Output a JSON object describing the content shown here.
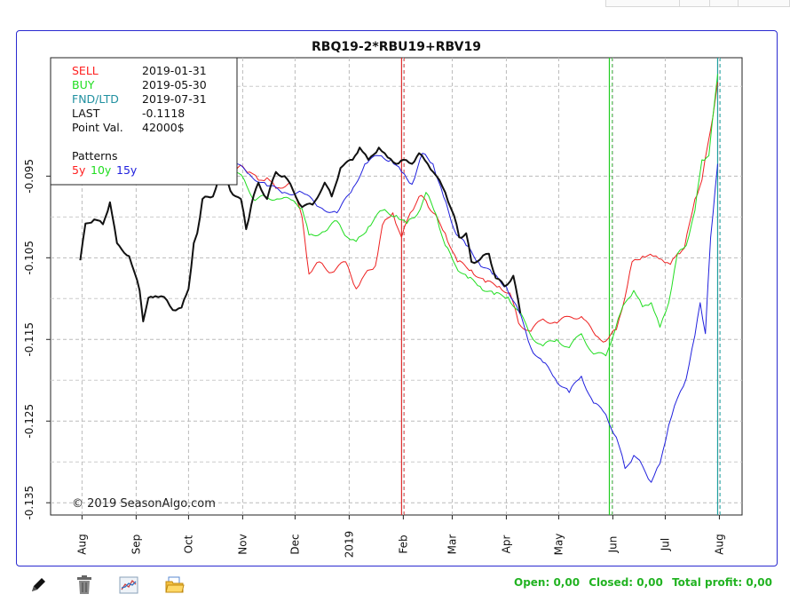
{
  "chart_data": {
    "type": "line",
    "title": "RBQ19-2*RBU19+RBV19",
    "watermark": "© 2019 SeasonAlgo.com",
    "x_tick_labels": [
      "Aug",
      "Sep",
      "Oct",
      "Nov",
      "Dec",
      "2019",
      "Feb",
      "Mar",
      "Apr",
      "May",
      "Jun",
      "Jul",
      "Aug"
    ],
    "x_ticks": [
      "2018-08-01",
      "2018-09-01",
      "2018-10-01",
      "2018-11-01",
      "2018-12-01",
      "2019-01-01",
      "2019-02-01",
      "2019-03-01",
      "2019-04-01",
      "2019-05-01",
      "2019-06-01",
      "2019-07-01",
      "2019-08-01"
    ],
    "x_range": [
      "2018-07-14",
      "2019-08-14"
    ],
    "y_ticks": [
      -0.095,
      -0.105,
      -0.115,
      -0.125,
      -0.135
    ],
    "y_tick_labels": [
      "-0.095",
      "-0.105",
      "-0.115",
      "-0.125",
      "-0.135"
    ],
    "ylim": [
      -0.1365,
      -0.0805
    ],
    "grid": true,
    "vertical_markers": [
      {
        "date": "2019-01-31",
        "color": "#e03030",
        "style": "solid"
      },
      {
        "date": "2019-05-30",
        "color": "#20cc20",
        "style": "solid"
      },
      {
        "date": "2019-07-31",
        "color": "#20a0a0",
        "style": "solid"
      }
    ],
    "info_box": {
      "rows": [
        {
          "label": "SELL",
          "value": "2019-01-31",
          "color": "#ff2020"
        },
        {
          "label": "BUY",
          "value": "2019-05-30",
          "color": "#20dd20"
        },
        {
          "label": "FND/LTD",
          "value": "2019-07-31",
          "color": "#2090a0"
        },
        {
          "label": "LAST",
          "value": "-0.1118",
          "color": "#111111"
        },
        {
          "label": "Point Val.",
          "value": "42000$",
          "color": "#111111"
        }
      ],
      "patterns_title": "Patterns",
      "patterns": [
        {
          "label": "5y",
          "color": "#ff2020"
        },
        {
          "label": "10y",
          "color": "#20dd20"
        },
        {
          "label": "15y",
          "color": "#2020dd"
        }
      ]
    },
    "series": [
      {
        "color": "#111111",
        "width": 2,
        "points": [
          [
            "2018-07-31",
            -0.1053
          ],
          [
            "2018-08-03",
            -0.1008
          ],
          [
            "2018-08-08",
            -0.1003
          ],
          [
            "2018-08-13",
            -0.1009
          ],
          [
            "2018-08-17",
            -0.0982
          ],
          [
            "2018-08-21",
            -0.1032
          ],
          [
            "2018-08-28",
            -0.1048
          ],
          [
            "2018-09-03",
            -0.109
          ],
          [
            "2018-09-05",
            -0.1128
          ],
          [
            "2018-09-08",
            -0.1099
          ],
          [
            "2018-09-12",
            -0.1097
          ],
          [
            "2018-09-17",
            -0.1098
          ],
          [
            "2018-09-22",
            -0.1114
          ],
          [
            "2018-09-27",
            -0.1111
          ],
          [
            "2018-10-01",
            -0.1088
          ],
          [
            "2018-10-04",
            -0.1032
          ],
          [
            "2018-10-06",
            -0.102
          ],
          [
            "2018-10-09",
            -0.0978
          ],
          [
            "2018-10-15",
            -0.0975
          ],
          [
            "2018-10-20",
            -0.0938
          ],
          [
            "2018-10-25",
            -0.0968
          ],
          [
            "2018-10-31",
            -0.0978
          ],
          [
            "2018-11-03",
            -0.1015
          ],
          [
            "2018-11-06",
            -0.0985
          ],
          [
            "2018-11-10",
            -0.0958
          ],
          [
            "2018-11-15",
            -0.0978
          ],
          [
            "2018-11-20",
            -0.0945
          ],
          [
            "2018-11-25",
            -0.095
          ],
          [
            "2018-11-30",
            -0.0968
          ],
          [
            "2018-12-05",
            -0.0988
          ],
          [
            "2018-12-11",
            -0.0985
          ],
          [
            "2018-12-18",
            -0.0958
          ],
          [
            "2018-12-22",
            -0.0975
          ],
          [
            "2018-12-27",
            -0.094
          ],
          [
            "2019-01-03",
            -0.093
          ],
          [
            "2019-01-07",
            -0.0915
          ],
          [
            "2019-01-12",
            -0.093
          ],
          [
            "2019-01-18",
            -0.0915
          ],
          [
            "2019-01-23",
            -0.0927
          ],
          [
            "2019-01-28",
            -0.0935
          ],
          [
            "2019-02-01",
            -0.093
          ],
          [
            "2019-02-06",
            -0.0935
          ],
          [
            "2019-02-10",
            -0.0922
          ],
          [
            "2019-02-15",
            -0.0935
          ],
          [
            "2019-02-20",
            -0.095
          ],
          [
            "2019-02-25",
            -0.097
          ],
          [
            "2019-03-02",
            -0.0998
          ],
          [
            "2019-03-05",
            -0.1025
          ],
          [
            "2019-03-09",
            -0.102
          ],
          [
            "2019-03-12",
            -0.1055
          ],
          [
            "2019-03-17",
            -0.1052
          ],
          [
            "2019-03-22",
            -0.1045
          ],
          [
            "2019-03-26",
            -0.1075
          ],
          [
            "2019-03-31",
            -0.1085
          ],
          [
            "2019-04-05",
            -0.1072
          ],
          [
            "2019-04-09",
            -0.1118
          ]
        ]
      },
      {
        "color": "#ee2020",
        "width": 1,
        "points": [
          [
            "2018-10-28",
            -0.0943
          ],
          [
            "2018-11-01",
            -0.0938
          ],
          [
            "2018-11-05",
            -0.0945
          ],
          [
            "2018-11-10",
            -0.0955
          ],
          [
            "2018-11-15",
            -0.0952
          ],
          [
            "2018-11-20",
            -0.0965
          ],
          [
            "2018-11-28",
            -0.0958
          ],
          [
            "2018-12-05",
            -0.1
          ],
          [
            "2018-12-09",
            -0.107
          ],
          [
            "2018-12-15",
            -0.1055
          ],
          [
            "2018-12-22",
            -0.1068
          ],
          [
            "2018-12-30",
            -0.1055
          ],
          [
            "2019-01-05",
            -0.1088
          ],
          [
            "2019-01-10",
            -0.107
          ],
          [
            "2019-01-16",
            -0.106
          ],
          [
            "2019-01-20",
            -0.101
          ],
          [
            "2019-01-26",
            -0.0995
          ],
          [
            "2019-01-31",
            -0.1025
          ],
          [
            "2019-02-05",
            -0.0995
          ],
          [
            "2019-02-10",
            -0.0975
          ],
          [
            "2019-02-14",
            -0.098
          ],
          [
            "2019-02-18",
            -0.0995
          ],
          [
            "2019-02-25",
            -0.102
          ],
          [
            "2019-03-04",
            -0.1055
          ],
          [
            "2019-03-12",
            -0.1065
          ],
          [
            "2019-03-20",
            -0.108
          ],
          [
            "2019-03-28",
            -0.1085
          ],
          [
            "2019-04-03",
            -0.1093
          ],
          [
            "2019-04-08",
            -0.113
          ],
          [
            "2019-04-15",
            -0.114
          ],
          [
            "2019-04-22",
            -0.1125
          ],
          [
            "2019-04-30",
            -0.113
          ],
          [
            "2019-05-07",
            -0.1122
          ],
          [
            "2019-05-14",
            -0.1122
          ],
          [
            "2019-05-22",
            -0.1145
          ],
          [
            "2019-05-28",
            -0.1152
          ],
          [
            "2019-06-03",
            -0.1138
          ],
          [
            "2019-06-08",
            -0.1098
          ],
          [
            "2019-06-12",
            -0.1055
          ],
          [
            "2019-06-18",
            -0.1048
          ],
          [
            "2019-06-24",
            -0.1048
          ],
          [
            "2019-06-29",
            -0.1052
          ],
          [
            "2019-07-04",
            -0.1058
          ],
          [
            "2019-07-08",
            -0.1045
          ],
          [
            "2019-07-12",
            -0.1038
          ],
          [
            "2019-07-18",
            -0.0978
          ],
          [
            "2019-07-22",
            -0.0955
          ],
          [
            "2019-07-27",
            -0.0893
          ],
          [
            "2019-07-31",
            -0.0835
          ]
        ]
      },
      {
        "color": "#20dd20",
        "width": 1,
        "points": [
          [
            "2018-10-28",
            -0.0945
          ],
          [
            "2018-11-02",
            -0.0955
          ],
          [
            "2018-11-08",
            -0.098
          ],
          [
            "2018-11-14",
            -0.0975
          ],
          [
            "2018-11-22",
            -0.0978
          ],
          [
            "2018-11-30",
            -0.098
          ],
          [
            "2018-12-05",
            -0.099
          ],
          [
            "2018-12-09",
            -0.1022
          ],
          [
            "2018-12-18",
            -0.1018
          ],
          [
            "2018-12-25",
            -0.1005
          ],
          [
            "2018-12-31",
            -0.1025
          ],
          [
            "2019-01-05",
            -0.103
          ],
          [
            "2019-01-12",
            -0.1012
          ],
          [
            "2019-01-20",
            -0.0992
          ],
          [
            "2019-01-28",
            -0.0998
          ],
          [
            "2019-02-03",
            -0.1008
          ],
          [
            "2019-02-09",
            -0.0997
          ],
          [
            "2019-02-14",
            -0.097
          ],
          [
            "2019-02-20",
            -0.0998
          ],
          [
            "2019-02-25",
            -0.1035
          ],
          [
            "2019-03-03",
            -0.106
          ],
          [
            "2019-03-10",
            -0.1075
          ],
          [
            "2019-03-17",
            -0.1085
          ],
          [
            "2019-03-25",
            -0.1095
          ],
          [
            "2019-04-02",
            -0.1098
          ],
          [
            "2019-04-08",
            -0.1115
          ],
          [
            "2019-04-15",
            -0.1145
          ],
          [
            "2019-04-22",
            -0.1158
          ],
          [
            "2019-04-30",
            -0.115
          ],
          [
            "2019-05-07",
            -0.116
          ],
          [
            "2019-05-14",
            -0.1143
          ],
          [
            "2019-05-21",
            -0.1168
          ],
          [
            "2019-05-28",
            -0.117
          ],
          [
            "2019-06-04",
            -0.1125
          ],
          [
            "2019-06-08",
            -0.1105
          ],
          [
            "2019-06-13",
            -0.109
          ],
          [
            "2019-06-18",
            -0.111
          ],
          [
            "2019-06-23",
            -0.1105
          ],
          [
            "2019-06-28",
            -0.1135
          ],
          [
            "2019-07-03",
            -0.1105
          ],
          [
            "2019-07-08",
            -0.1045
          ],
          [
            "2019-07-13",
            -0.1035
          ],
          [
            "2019-07-18",
            -0.0992
          ],
          [
            "2019-07-22",
            -0.093
          ],
          [
            "2019-07-26",
            -0.0925
          ],
          [
            "2019-07-31",
            -0.0825
          ]
        ]
      },
      {
        "color": "#2020dd",
        "width": 1,
        "points": [
          [
            "2018-10-28",
            -0.0935
          ],
          [
            "2018-11-05",
            -0.0948
          ],
          [
            "2018-11-15",
            -0.0962
          ],
          [
            "2018-11-25",
            -0.097
          ],
          [
            "2018-12-05",
            -0.097
          ],
          [
            "2018-12-15",
            -0.0988
          ],
          [
            "2018-12-25",
            -0.0995
          ],
          [
            "2019-01-02",
            -0.097
          ],
          [
            "2019-01-10",
            -0.0935
          ],
          [
            "2019-01-18",
            -0.0925
          ],
          [
            "2019-01-25",
            -0.093
          ],
          [
            "2019-01-31",
            -0.0945
          ],
          [
            "2019-02-06",
            -0.096
          ],
          [
            "2019-02-12",
            -0.0922
          ],
          [
            "2019-02-18",
            -0.0935
          ],
          [
            "2019-02-24",
            -0.0975
          ],
          [
            "2019-03-02",
            -0.1015
          ],
          [
            "2019-03-09",
            -0.1035
          ],
          [
            "2019-03-16",
            -0.1055
          ],
          [
            "2019-03-24",
            -0.107
          ],
          [
            "2019-04-01",
            -0.1085
          ],
          [
            "2019-04-08",
            -0.1115
          ],
          [
            "2019-04-15",
            -0.116
          ],
          [
            "2019-04-22",
            -0.1178
          ],
          [
            "2019-04-29",
            -0.1198
          ],
          [
            "2019-05-07",
            -0.1215
          ],
          [
            "2019-05-14",
            -0.1195
          ],
          [
            "2019-05-21",
            -0.1228
          ],
          [
            "2019-05-28",
            -0.1242
          ],
          [
            "2019-06-03",
            -0.127
          ],
          [
            "2019-06-08",
            -0.1308
          ],
          [
            "2019-06-13",
            -0.1292
          ],
          [
            "2019-06-18",
            -0.1305
          ],
          [
            "2019-06-23",
            -0.1325
          ],
          [
            "2019-06-28",
            -0.1302
          ],
          [
            "2019-07-03",
            -0.1255
          ],
          [
            "2019-07-08",
            -0.1222
          ],
          [
            "2019-07-13",
            -0.1198
          ],
          [
            "2019-07-18",
            -0.1145
          ],
          [
            "2019-07-21",
            -0.1105
          ],
          [
            "2019-07-24",
            -0.1143
          ],
          [
            "2019-07-27",
            -0.1025
          ],
          [
            "2019-07-31",
            -0.0935
          ]
        ]
      }
    ]
  },
  "toolbar": {
    "open_label": "Open: 0,00",
    "closed_label": "Closed: 0,00",
    "total_label": "Total profit: 0,00"
  }
}
